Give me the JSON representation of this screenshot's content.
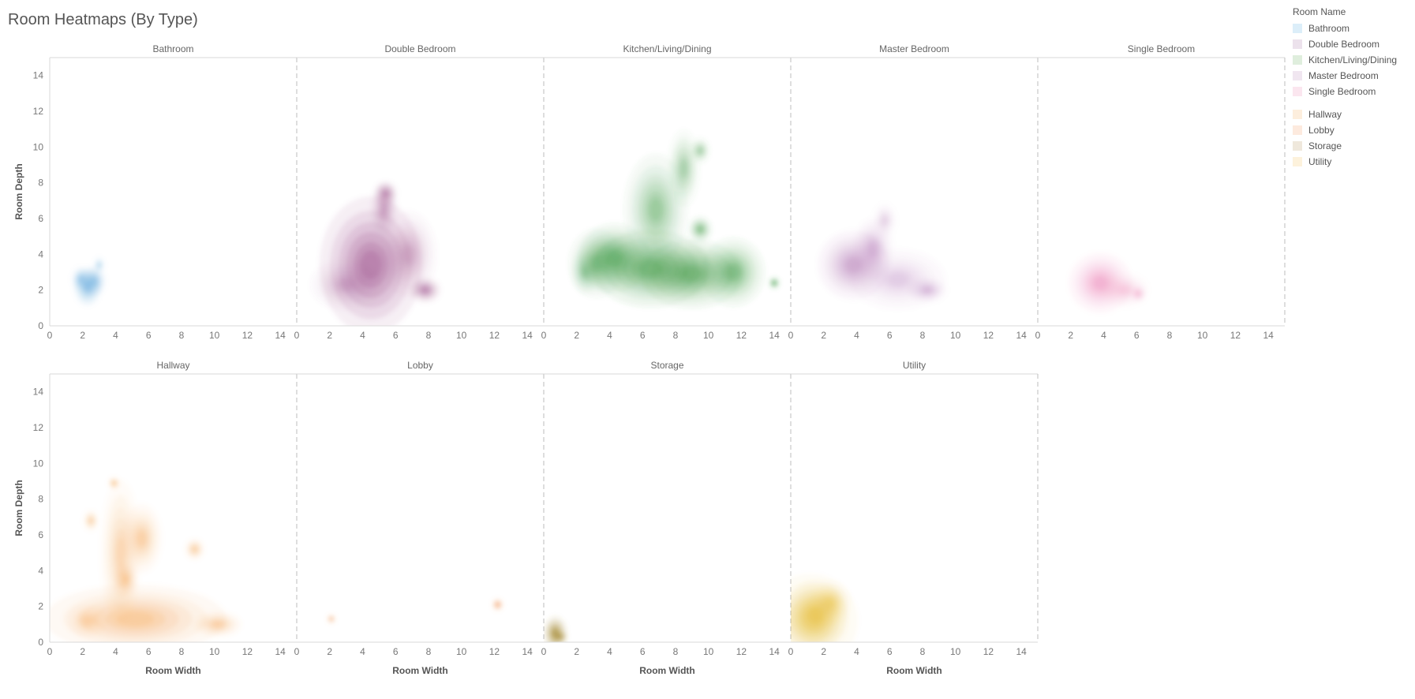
{
  "title": "Room Heatmaps (By Type)",
  "legend": {
    "title": "Room Name",
    "groups": [
      [
        {
          "label": "Bathroom",
          "color": "#dceef9"
        },
        {
          "label": "Double Bedroom",
          "color": "#ece2ec"
        },
        {
          "label": "Kitchen/Living/Dining",
          "color": "#dfeedd"
        },
        {
          "label": "Master Bedroom",
          "color": "#f0e6f0"
        },
        {
          "label": "Single Bedroom",
          "color": "#fbe6ef"
        }
      ],
      [
        {
          "label": "Hallway",
          "color": "#fdeedd"
        },
        {
          "label": "Lobby",
          "color": "#fdeade"
        },
        {
          "label": "Storage",
          "color": "#efe8dc"
        },
        {
          "label": "Utility",
          "color": "#fdf2dc"
        }
      ]
    ]
  },
  "chart_data": {
    "type": "heatmap",
    "xlabel": "Room Width",
    "ylabel": "Room Depth",
    "xlim": [
      0,
      15
    ],
    "ylim": [
      0,
      15
    ],
    "xticks": [
      0,
      2,
      4,
      6,
      8,
      10,
      12,
      14
    ],
    "yticks": [
      0,
      2,
      4,
      6,
      8,
      10,
      12,
      14
    ],
    "panels": [
      {
        "name": "Bathroom",
        "row": 0,
        "col": 0,
        "color": "#6fb0e0",
        "hotspots": [
          [
            2.3,
            2.2,
            0.35,
            0.45,
            0.9
          ],
          [
            2.7,
            2.5,
            0.3,
            0.35,
            0.7
          ],
          [
            1.9,
            2.6,
            0.25,
            0.3,
            0.6
          ],
          [
            3.0,
            3.4,
            0.15,
            0.2,
            0.4
          ]
        ]
      },
      {
        "name": "Double Bedroom",
        "row": 0,
        "col": 1,
        "color": "#a25a92",
        "hotspots": [
          [
            4.5,
            3.4,
            1.3,
            1.6,
            1.0
          ],
          [
            5.3,
            6.5,
            0.35,
            0.6,
            0.55
          ],
          [
            5.4,
            7.4,
            0.3,
            0.3,
            0.7
          ],
          [
            7.8,
            2.0,
            0.4,
            0.3,
            0.8
          ],
          [
            6.8,
            4.0,
            0.7,
            1.0,
            0.45
          ],
          [
            3.0,
            2.3,
            0.9,
            0.6,
            0.4
          ]
        ]
      },
      {
        "name": "Kitchen/Living/Dining",
        "row": 0,
        "col": 2,
        "color": "#3f9a45",
        "hotspots": [
          [
            4.3,
            3.8,
            0.9,
            0.8,
            0.75
          ],
          [
            6.5,
            3.2,
            1.5,
            0.9,
            0.85
          ],
          [
            9.0,
            2.9,
            1.3,
            0.8,
            0.8
          ],
          [
            11.5,
            3.0,
            0.8,
            0.8,
            0.7
          ],
          [
            3.2,
            3.5,
            0.7,
            0.8,
            0.55
          ],
          [
            6.8,
            6.5,
            0.8,
            1.3,
            0.55
          ],
          [
            8.5,
            8.8,
            0.4,
            0.9,
            0.45
          ],
          [
            9.5,
            9.8,
            0.25,
            0.3,
            0.45
          ],
          [
            9.5,
            5.4,
            0.3,
            0.3,
            0.65
          ],
          [
            14.0,
            2.4,
            0.15,
            0.15,
            0.7
          ],
          [
            2.5,
            3.0,
            0.35,
            0.5,
            0.4
          ]
        ]
      },
      {
        "name": "Master Bedroom",
        "row": 0,
        "col": 3,
        "color": "#b278b5",
        "hotspots": [
          [
            3.8,
            3.4,
            0.9,
            0.8,
            0.7
          ],
          [
            5.0,
            4.3,
            0.5,
            0.7,
            0.5
          ],
          [
            6.5,
            2.6,
            1.2,
            0.7,
            0.35
          ],
          [
            8.3,
            2.0,
            0.5,
            0.3,
            0.45
          ],
          [
            5.7,
            5.9,
            0.3,
            0.4,
            0.3
          ]
        ]
      },
      {
        "name": "Single Bedroom",
        "row": 0,
        "col": 4,
        "color": "#ec8fbb",
        "hotspots": [
          [
            3.8,
            2.4,
            0.8,
            0.7,
            0.8
          ],
          [
            5.3,
            2.0,
            0.6,
            0.4,
            0.4
          ],
          [
            6.1,
            1.8,
            0.2,
            0.2,
            0.5
          ]
        ]
      },
      {
        "name": "Hallway",
        "row": 1,
        "col": 0,
        "color": "#f7ad62",
        "hotspots": [
          [
            5.2,
            1.3,
            2.3,
            0.8,
            0.7
          ],
          [
            4.3,
            5.0,
            0.5,
            1.7,
            0.5
          ],
          [
            5.6,
            5.8,
            0.5,
            0.8,
            0.6
          ],
          [
            8.8,
            5.2,
            0.25,
            0.25,
            0.55
          ],
          [
            10.2,
            1.0,
            0.6,
            0.3,
            0.55
          ],
          [
            2.3,
            1.2,
            0.5,
            0.4,
            0.45
          ],
          [
            3.9,
            8.9,
            0.15,
            0.15,
            0.6
          ],
          [
            2.5,
            6.8,
            0.2,
            0.25,
            0.5
          ],
          [
            4.6,
            3.5,
            0.3,
            0.4,
            0.55
          ]
        ]
      },
      {
        "name": "Lobby",
        "row": 1,
        "col": 1,
        "color": "#f4a36e",
        "hotspots": [
          [
            2.1,
            1.3,
            0.12,
            0.12,
            0.6
          ],
          [
            12.2,
            2.1,
            0.15,
            0.15,
            0.85
          ]
        ]
      },
      {
        "name": "Storage",
        "row": 1,
        "col": 2,
        "color": "#a08428",
        "hotspots": [
          [
            0.7,
            0.5,
            0.3,
            0.4,
            1.0
          ],
          [
            1.0,
            0.3,
            0.2,
            0.15,
            0.6
          ]
        ]
      },
      {
        "name": "Utility",
        "row": 1,
        "col": 3,
        "color": "#e6be3c",
        "hotspots": [
          [
            1.5,
            1.5,
            0.8,
            0.8,
            0.9
          ],
          [
            2.4,
            2.2,
            0.5,
            0.5,
            0.6
          ],
          [
            1.2,
            1.2,
            1.2,
            1.1,
            0.4
          ]
        ]
      }
    ]
  }
}
